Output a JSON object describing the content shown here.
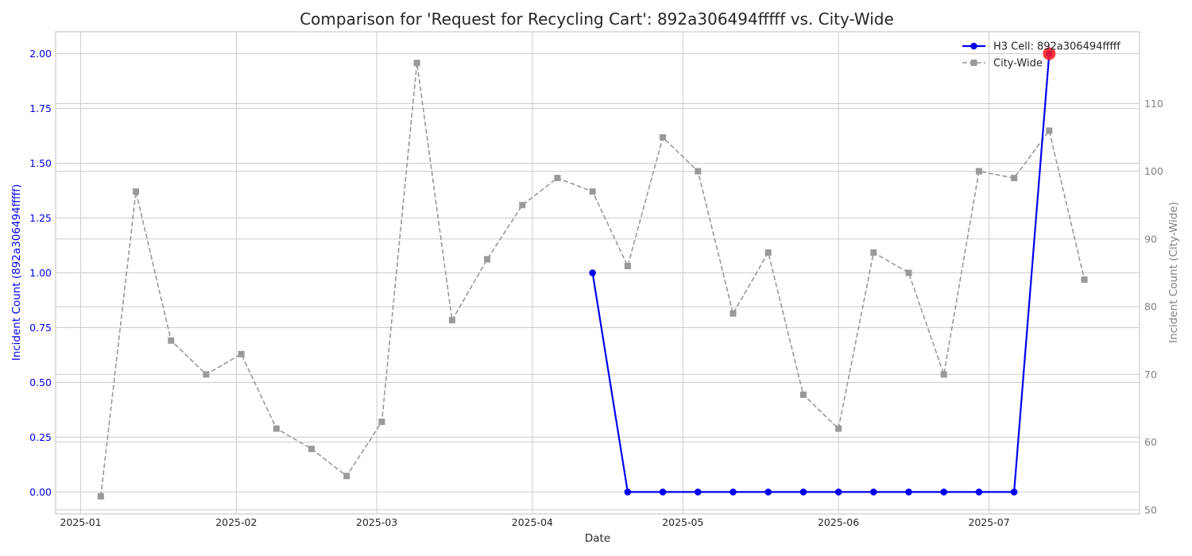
{
  "chart_data": {
    "type": "line",
    "title": "Comparison for 'Request for Recycling Cart': 892a306494fffff vs. City-Wide",
    "xlabel": "Date",
    "ylabel_left": "Incident Count (892a306494fffff)",
    "ylabel_right": "Incident Count (City-Wide)",
    "x_ticks": [
      "2025-01",
      "2025-02",
      "2025-03",
      "2025-04",
      "2025-05",
      "2025-06",
      "2025-07"
    ],
    "x_tick_dates": [
      "2025-01-01",
      "2025-02-01",
      "2025-03-01",
      "2025-04-01",
      "2025-05-01",
      "2025-06-01",
      "2025-07-01"
    ],
    "xlim": [
      "2024-12-27",
      "2025-07-31"
    ],
    "y_left_ticks": [
      "0.00",
      "0.25",
      "0.50",
      "0.75",
      "1.00",
      "1.25",
      "1.50",
      "1.75",
      "2.00"
    ],
    "y_left_lim": [
      -0.1,
      2.1
    ],
    "y_right_ticks": [
      "50",
      "60",
      "70",
      "80",
      "90",
      "100",
      "110"
    ],
    "y_right_lim": [
      49.4,
      120.6
    ],
    "grid": true,
    "legend_position": "top-right",
    "highlight": {
      "x": "2025-07-13",
      "y": 2,
      "color": "#ff1a1a"
    },
    "series": [
      {
        "name": "H3 Cell: 892a306494fffff",
        "axis": "left",
        "color": "#0000ee",
        "style": "solid",
        "marker": "circle",
        "x": [
          "2025-04-13",
          "2025-04-20",
          "2025-04-27",
          "2025-05-04",
          "2025-05-11",
          "2025-05-18",
          "2025-05-25",
          "2025-06-01",
          "2025-06-08",
          "2025-06-15",
          "2025-06-22",
          "2025-06-29",
          "2025-07-06",
          "2025-07-13"
        ],
        "values": [
          1,
          0,
          0,
          0,
          0,
          0,
          0,
          0,
          0,
          0,
          0,
          0,
          0,
          2
        ]
      },
      {
        "name": "City-Wide",
        "axis": "right",
        "color": "#999999",
        "style": "dashed",
        "marker": "square",
        "x": [
          "2025-01-05",
          "2025-01-12",
          "2025-01-19",
          "2025-01-26",
          "2025-02-02",
          "2025-02-09",
          "2025-02-16",
          "2025-02-23",
          "2025-03-02",
          "2025-03-09",
          "2025-03-16",
          "2025-03-23",
          "2025-03-30",
          "2025-04-06",
          "2025-04-13",
          "2025-04-20",
          "2025-04-27",
          "2025-05-04",
          "2025-05-11",
          "2025-05-18",
          "2025-05-25",
          "2025-06-01",
          "2025-06-08",
          "2025-06-15",
          "2025-06-22",
          "2025-06-29",
          "2025-07-06",
          "2025-07-13",
          "2025-07-20"
        ],
        "values": [
          52,
          97,
          75,
          70,
          73,
          62,
          59,
          55,
          63,
          116,
          78,
          87,
          95,
          99,
          97,
          86,
          105,
          100,
          79,
          88,
          67,
          62,
          88,
          85,
          70,
          100,
          99,
          106,
          84
        ]
      }
    ]
  }
}
